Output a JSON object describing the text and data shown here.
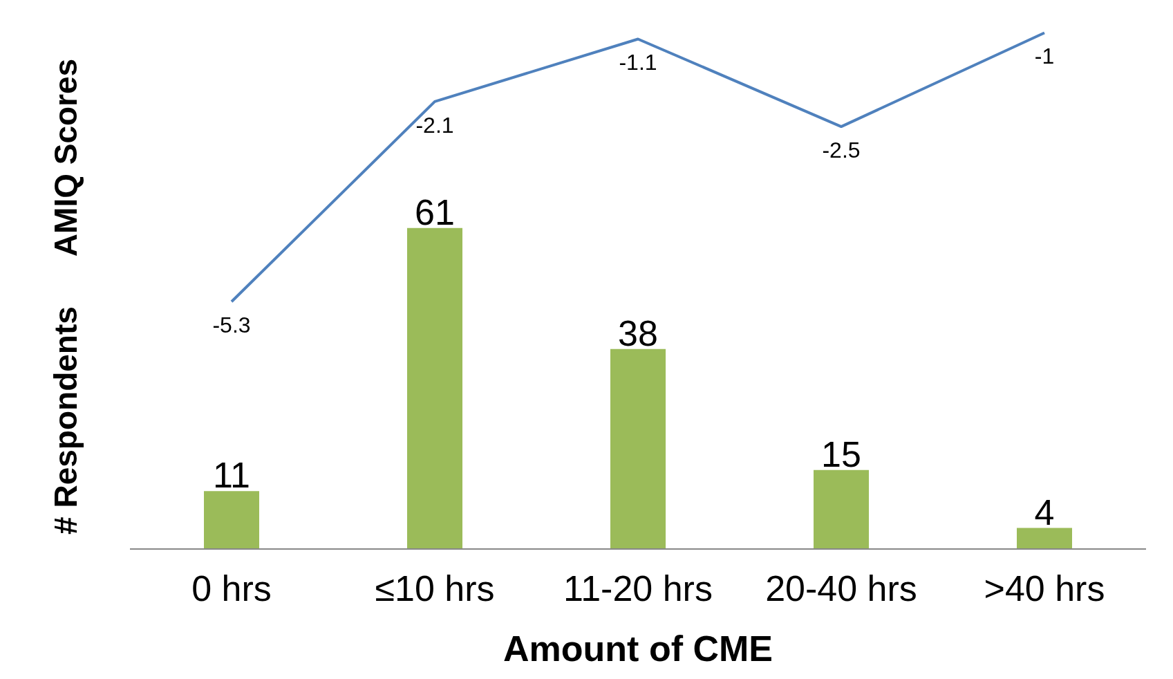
{
  "chart_data": {
    "type": "bar",
    "xlabel": "Amount of CME",
    "ylabel": "# Respondents",
    "y2label": "AMIQ Scores",
    "categories": [
      "0 hrs",
      "≤10 hrs",
      "11-20 hrs",
      "20-40 hrs",
      ">40 hrs"
    ],
    "series": [
      {
        "color": "#9bbb59",
        "values": [
          11,
          61,
          38,
          15,
          4
        ]
      },
      {
        "type": "line",
        "axis": "y2",
        "color": "#4f81bd",
        "values": [
          -5.3,
          -2.1,
          -1.1,
          -2.5,
          -1
        ]
      }
    ],
    "data_labels": true,
    "grid": false,
    "legend": false,
    "marker": "none"
  }
}
